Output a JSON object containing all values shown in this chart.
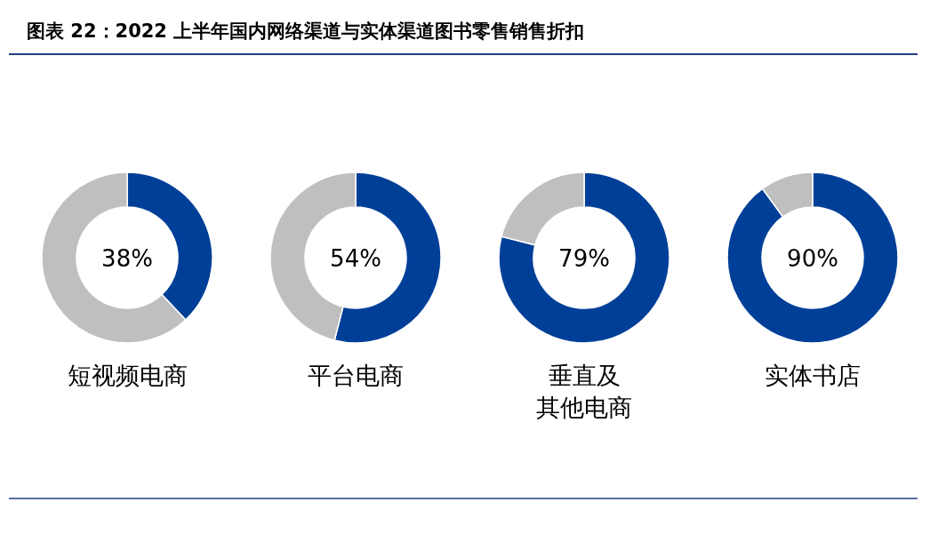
{
  "chart_data": [
    {
      "type": "donut",
      "title": "短视频电商",
      "categories": [
        null,
        null
      ],
      "values": [
        38,
        62
      ],
      "colors": [
        "#003f98",
        "#bfbfbf"
      ],
      "annotations": [
        "图表 22：2022 上半年国内网络渠道与实体渠道图书零售销售折扣",
        "38%"
      ]
    },
    {
      "type": "donut",
      "title": "平台电商",
      "categories": [
        null,
        null
      ],
      "values": [
        54,
        46
      ],
      "colors": [
        "#003f98",
        "#bfbfbf"
      ],
      "annotations": [
        "54%"
      ]
    },
    {
      "type": "donut",
      "title": "垂直及其他电商",
      "categories": [
        null,
        null
      ],
      "values": [
        79,
        21
      ],
      "colors": [
        "#003f98",
        "#bfbfbf"
      ],
      "annotations": [
        "79%"
      ]
    },
    {
      "type": "donut",
      "title": "实体书店",
      "categories": [
        null,
        null
      ],
      "values": [
        90,
        10
      ],
      "colors": [
        "#003f98",
        "#bfbfbf"
      ],
      "annotations": [
        "90%"
      ]
    }
  ]
}
